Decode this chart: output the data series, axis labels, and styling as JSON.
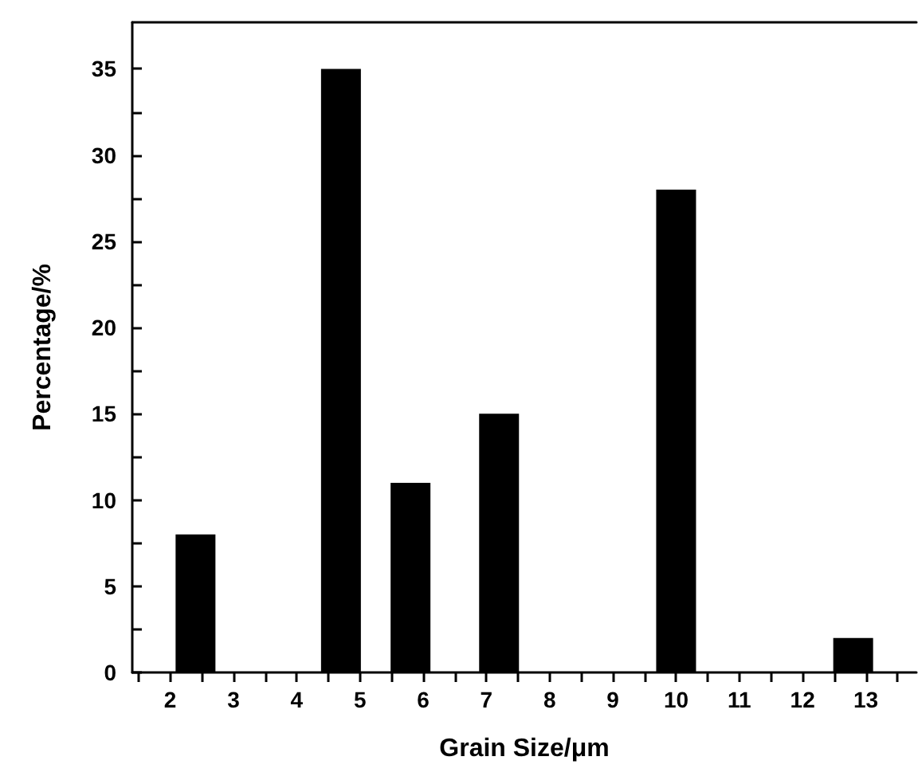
{
  "chart_data": {
    "type": "bar",
    "xlabel": "Grain Size/μm",
    "ylabel": "Percentage/%",
    "x": [
      2.4,
      4.7,
      5.8,
      7.2,
      10,
      12.8
    ],
    "values": [
      8,
      35,
      11,
      15,
      28,
      2
    ],
    "color": "#000000",
    "xlim": [
      1.4,
      13.8
    ],
    "xticks": [
      {
        "value": 1.5,
        "label": null
      },
      2,
      {
        "value": 2.5,
        "label": null
      },
      3,
      {
        "value": 3.5,
        "label": null
      },
      4,
      {
        "value": 4.5,
        "label": null
      },
      5,
      {
        "value": 5.5,
        "label": null
      },
      6,
      {
        "value": 6.5,
        "label": null
      },
      7,
      {
        "value": 7.5,
        "label": null
      },
      8,
      {
        "value": 8.5,
        "label": null
      },
      9,
      {
        "value": 9.5,
        "label": null
      },
      10,
      {
        "value": 10.5,
        "label": null
      },
      11,
      {
        "value": 11.5,
        "label": null
      },
      12,
      {
        "value": 12.5,
        "label": null
      },
      13,
      {
        "value": 13.5,
        "label": null
      }
    ],
    "ylim": [
      0,
      37.7
    ],
    "yticks": [
      0,
      {
        "value": 2.5,
        "label": null
      },
      5,
      {
        "value": 7.5,
        "label": null
      },
      10,
      {
        "value": 12.5,
        "label": null
      },
      15,
      {
        "value": 17.5,
        "label": null
      },
      20,
      {
        "value": 22.5,
        "label": null
      },
      25,
      {
        "value": 27.5,
        "label": null
      },
      30,
      {
        "value": 32.5,
        "label": null
      },
      35
    ],
    "grid": false
  }
}
